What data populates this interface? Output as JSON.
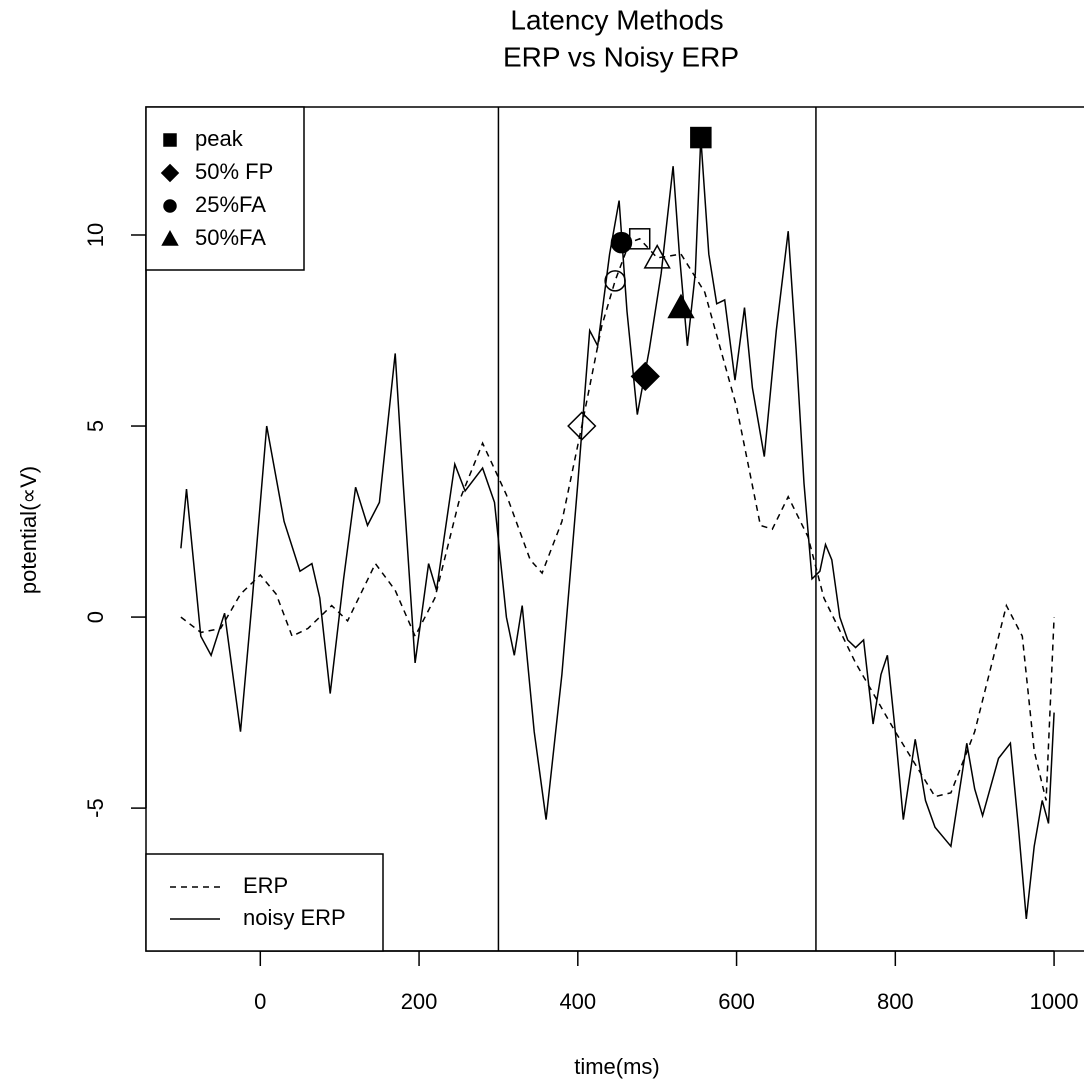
{
  "chart_data": {
    "type": "line",
    "title": "Latency Methods",
    "subtitle": "ERP vs Noisy ERP",
    "x_label": "time(ms)",
    "y_label": "potential(∝V)",
    "xlim": [
      -144,
      1044
    ],
    "ylim": [
      -8.74,
      13.35
    ],
    "xticks": [
      0,
      200,
      400,
      600,
      800,
      1000
    ],
    "yticks": [
      -5,
      0,
      5,
      10
    ],
    "vlines": [
      300,
      700
    ],
    "color": "#000000",
    "methods": [
      {
        "name": "peak",
        "shape": "square"
      },
      {
        "name": "50% FP",
        "shape": "diamond"
      },
      {
        "name": "25%FA",
        "shape": "circle"
      },
      {
        "name": "50%FA",
        "shape": "triangle"
      }
    ],
    "series": [
      {
        "name": "ERP",
        "dash": "dashed",
        "marker_fill": "open",
        "x": [
          -100,
          -75,
          -50,
          -25,
          0,
          20,
          40,
          60,
          90,
          110,
          145,
          170,
          195,
          220,
          250,
          280,
          310,
          340,
          355,
          380,
          405,
          430,
          447,
          465,
          478,
          500,
          530,
          560,
          600,
          630,
          645,
          665,
          690,
          710,
          750,
          800,
          850,
          870,
          900,
          940,
          960,
          975,
          990,
          1000
        ],
        "values": [
          0,
          -0.4,
          -0.3,
          0.6,
          1.1,
          0.6,
          -0.5,
          -0.3,
          0.3,
          -0.1,
          1.4,
          0.7,
          -0.5,
          0.5,
          3.0,
          4.55,
          3.2,
          1.5,
          1.15,
          2.5,
          5.0,
          7.6,
          8.8,
          9.8,
          9.9,
          9.4,
          9.5,
          8.5,
          5.5,
          2.4,
          2.3,
          3.15,
          2.1,
          0.5,
          -1.2,
          -3.0,
          -4.7,
          -4.6,
          -3.0,
          0.3,
          -0.5,
          -3.5,
          -4.8,
          0
        ],
        "points": {
          "x": [
            478,
            405,
            447,
            500
          ],
          "values": [
            9.9,
            5.0,
            8.8,
            9.4
          ]
        }
      },
      {
        "name": "noisy ERP",
        "dash": "solid",
        "marker_fill": "filled",
        "x": [
          -100,
          -93,
          -75,
          -62,
          -45,
          -25,
          -10,
          8,
          30,
          50,
          65,
          75,
          88,
          105,
          120,
          135,
          150,
          170,
          180,
          195,
          212,
          222,
          245,
          258,
          280,
          295,
          310,
          320,
          330,
          345,
          360,
          380,
          400,
          415,
          425,
          440,
          452,
          462,
          475,
          490,
          505,
          520,
          528,
          538,
          548,
          555,
          565,
          575,
          585,
          598,
          610,
          620,
          635,
          650,
          665,
          675,
          685,
          695,
          705,
          712,
          720,
          730,
          740,
          750,
          760,
          772,
          782,
          790,
          800,
          810,
          825,
          838,
          850,
          870,
          890,
          900,
          910,
          930,
          945,
          955,
          965,
          975,
          985,
          993,
          1000
        ],
        "values": [
          1.8,
          3.35,
          -0.5,
          -1.0,
          0.1,
          -3.0,
          0.5,
          5.0,
          2.5,
          1.2,
          1.4,
          0.5,
          -2.0,
          1.0,
          3.4,
          2.4,
          3.0,
          6.9,
          3.5,
          -1.2,
          1.4,
          0.7,
          4.0,
          3.3,
          3.9,
          3.0,
          0,
          -1.0,
          0.3,
          -3.0,
          -5.3,
          -1.5,
          3.5,
          7.5,
          7.1,
          9.5,
          10.9,
          8.0,
          5.3,
          7.0,
          9.0,
          11.8,
          9.5,
          7.1,
          9.0,
          12.55,
          9.5,
          8.2,
          8.3,
          6.2,
          8.1,
          6.0,
          4.2,
          7.5,
          10.1,
          7.0,
          3.5,
          1.0,
          1.2,
          1.9,
          1.5,
          0,
          -0.6,
          -0.8,
          -0.6,
          -2.8,
          -1.5,
          -1.0,
          -3.0,
          -5.3,
          -3.2,
          -4.8,
          -5.5,
          -6.0,
          -3.3,
          -4.5,
          -5.2,
          -3.7,
          -3.3,
          -5.5,
          -7.9,
          -6.0,
          -4.8,
          -5.4,
          -2.5
        ],
        "points": {
          "x": [
            555,
            485,
            455,
            530
          ],
          "values": [
            12.55,
            6.3,
            9.8,
            8.1
          ]
        }
      }
    ]
  }
}
